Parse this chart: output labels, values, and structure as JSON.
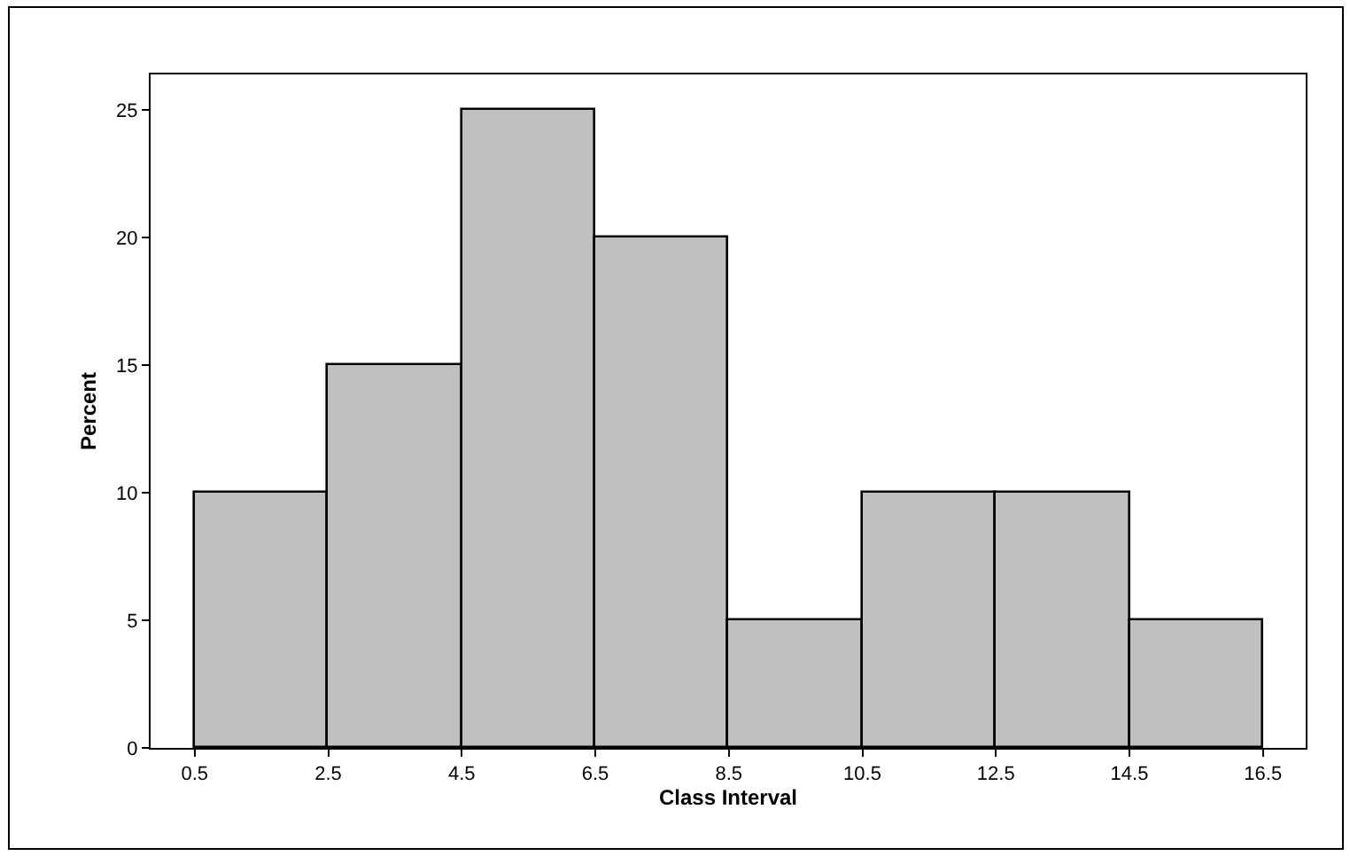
{
  "chart_data": {
    "type": "histogram",
    "xlabel": "Class Interval",
    "ylabel": "Percent",
    "bins": [
      0.5,
      2.5,
      4.5,
      6.5,
      8.5,
      10.5,
      12.5,
      14.5,
      16.5
    ],
    "values": [
      10,
      15,
      25,
      20,
      5,
      10,
      10,
      5
    ],
    "color": "#c0c0c0",
    "xlim": [
      -0.16,
      17.14
    ],
    "xticks": [
      0.5,
      2.5,
      4.5,
      6.5,
      8.5,
      10.5,
      12.5,
      14.5,
      16.5
    ],
    "ylim": [
      0,
      26.4
    ],
    "yticks": [
      0,
      5,
      10,
      15,
      20,
      25
    ]
  }
}
